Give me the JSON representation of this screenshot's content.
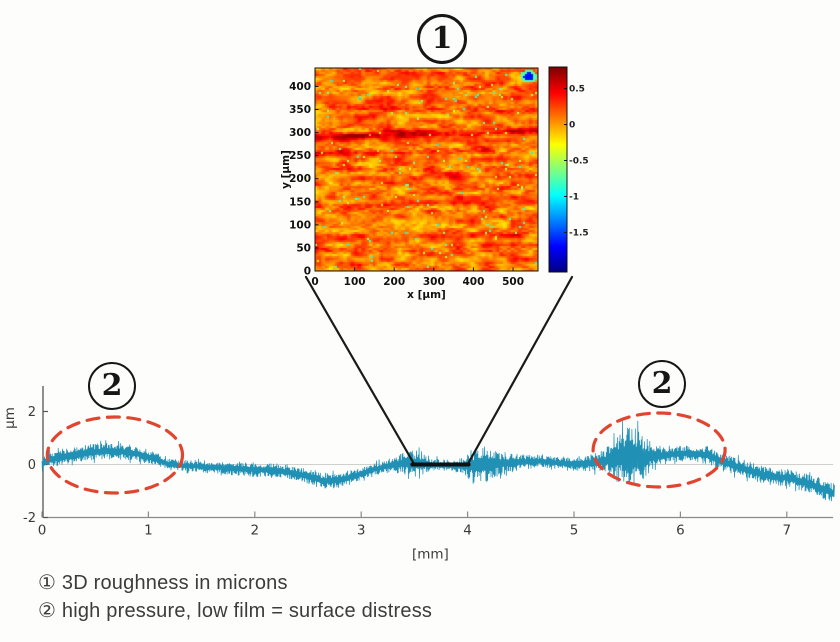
{
  "figure": {
    "background": "#fdfdfc",
    "accent_red": "#e0462f",
    "signal_color": "#2090b5",
    "ink": "#161616"
  },
  "callouts": {
    "one": "1",
    "two": "2"
  },
  "captions": {
    "line1": "① 3D roughness in microns",
    "line2": "② high pressure, low film = surface distress"
  },
  "chart_data": [
    {
      "id": "roughness_map",
      "type": "heatmap",
      "title": "",
      "xlabel": "x [μm]",
      "ylabel": "y [μm]",
      "x_ticks": [
        0,
        100,
        200,
        300,
        400,
        500
      ],
      "y_ticks": [
        0,
        50,
        100,
        150,
        200,
        250,
        300,
        350,
        400
      ],
      "xlim": [
        0,
        563
      ],
      "ylim": [
        0,
        440
      ],
      "colormap": "jet",
      "value_range_um": [
        -2.05,
        0.8
      ],
      "colorbar_ticks": [
        0.5,
        0,
        -0.5,
        -1,
        -1.5
      ],
      "texture": {
        "base_value_um": 0.12,
        "scratches": [
          {
            "y_um": 300,
            "strength": 0.42,
            "halfwidth_um": 8,
            "tilt_um": 14,
            "span": [
              0,
              1
            ]
          },
          {
            "y_um": 262,
            "strength": 0.25,
            "halfwidth_um": 6,
            "tilt_um": 6,
            "span": [
              0,
              0.8
            ]
          },
          {
            "y_um": 352,
            "strength": 0.16,
            "halfwidth_um": 6,
            "tilt_um": -6,
            "span": [
              0.1,
              1
            ]
          },
          {
            "y_um": 150,
            "strength": 0.15,
            "halfwidth_um": 6,
            "tilt_um": 8,
            "span": [
              0,
              1
            ]
          },
          {
            "y_um": 80,
            "strength": 0.2,
            "halfwidth_um": 7,
            "tilt_um": 4,
            "span": [
              0.05,
              0.95
            ]
          },
          {
            "y_um": 205,
            "strength": 0.14,
            "halfwidth_um": 5,
            "tilt_um": 10,
            "span": [
              0.3,
              1
            ]
          }
        ],
        "pit_density": 0.013,
        "deep_pit": {
          "x_um": 535,
          "y_um": 424,
          "value_um": -1.65
        }
      }
    },
    {
      "id": "surface_profile",
      "type": "line",
      "xlabel": "[mm]",
      "ylabel": "μm",
      "x_ticks": [
        0,
        1,
        2,
        3,
        4,
        5,
        6,
        7
      ],
      "y_ticks": [
        2,
        0,
        -2
      ],
      "xlim": [
        0,
        7.45
      ],
      "ylim": [
        -2,
        3.05
      ],
      "zero_line": true,
      "zoom_extent_mm": [
        3.5,
        4.0
      ],
      "distress_regions_mm": [
        [
          0.05,
          1.32
        ],
        [
          5.18,
          6.42
        ]
      ],
      "mean_profile": [
        [
          0,
          0.0
        ],
        [
          0.05,
          0.15
        ],
        [
          0.15,
          0.25
        ],
        [
          0.3,
          0.38
        ],
        [
          0.45,
          0.45
        ],
        [
          0.6,
          0.5
        ],
        [
          0.75,
          0.48
        ],
        [
          0.9,
          0.4
        ],
        [
          1.0,
          0.3
        ],
        [
          1.1,
          0.15
        ],
        [
          1.2,
          0.0
        ],
        [
          1.35,
          -0.05
        ],
        [
          1.5,
          -0.08
        ],
        [
          1.7,
          -0.12
        ],
        [
          1.9,
          -0.18
        ],
        [
          2.1,
          -0.2
        ],
        [
          2.3,
          -0.28
        ],
        [
          2.5,
          -0.45
        ],
        [
          2.65,
          -0.62
        ],
        [
          2.8,
          -0.58
        ],
        [
          2.95,
          -0.42
        ],
        [
          3.1,
          -0.2
        ],
        [
          3.25,
          -0.05
        ],
        [
          3.4,
          0.05
        ],
        [
          3.55,
          0.05
        ],
        [
          3.7,
          -0.02
        ],
        [
          3.85,
          -0.03
        ],
        [
          4.0,
          -0.05
        ],
        [
          4.15,
          0.0
        ],
        [
          4.3,
          0.05
        ],
        [
          4.5,
          0.1
        ],
        [
          4.7,
          0.12
        ],
        [
          4.9,
          0.05
        ],
        [
          5.05,
          0.0
        ],
        [
          5.2,
          0.08
        ],
        [
          5.35,
          0.2
        ],
        [
          5.5,
          0.35
        ],
        [
          5.65,
          0.3
        ],
        [
          5.8,
          0.32
        ],
        [
          5.95,
          0.4
        ],
        [
          6.1,
          0.42
        ],
        [
          6.25,
          0.35
        ],
        [
          6.4,
          0.1
        ],
        [
          6.55,
          -0.1
        ],
        [
          6.7,
          -0.3
        ],
        [
          6.85,
          -0.45
        ],
        [
          7.0,
          -0.5
        ],
        [
          7.1,
          -0.6
        ],
        [
          7.25,
          -0.8
        ],
        [
          7.45,
          -1.1
        ]
      ],
      "amplitude_profile": [
        [
          0,
          0.28
        ],
        [
          0.3,
          0.32
        ],
        [
          0.6,
          0.33
        ],
        [
          0.9,
          0.3
        ],
        [
          1.1,
          0.25
        ],
        [
          1.3,
          0.22
        ],
        [
          1.6,
          0.25
        ],
        [
          2.0,
          0.28
        ],
        [
          2.4,
          0.3
        ],
        [
          2.8,
          0.32
        ],
        [
          3.1,
          0.22
        ],
        [
          3.35,
          0.35
        ],
        [
          3.5,
          0.55
        ],
        [
          3.65,
          0.3
        ],
        [
          3.8,
          0.22
        ],
        [
          3.95,
          0.3
        ],
        [
          4.05,
          0.65
        ],
        [
          4.15,
          0.75
        ],
        [
          4.25,
          0.55
        ],
        [
          4.4,
          0.35
        ],
        [
          4.6,
          0.28
        ],
        [
          4.85,
          0.25
        ],
        [
          5.1,
          0.3
        ],
        [
          5.3,
          0.45
        ],
        [
          5.42,
          0.95
        ],
        [
          5.52,
          1.35
        ],
        [
          5.62,
          1.0
        ],
        [
          5.75,
          0.45
        ],
        [
          5.9,
          0.3
        ],
        [
          6.1,
          0.3
        ],
        [
          6.35,
          0.38
        ],
        [
          6.6,
          0.35
        ],
        [
          6.9,
          0.32
        ],
        [
          7.1,
          0.35
        ],
        [
          7.3,
          0.38
        ],
        [
          7.45,
          0.38
        ]
      ]
    }
  ]
}
